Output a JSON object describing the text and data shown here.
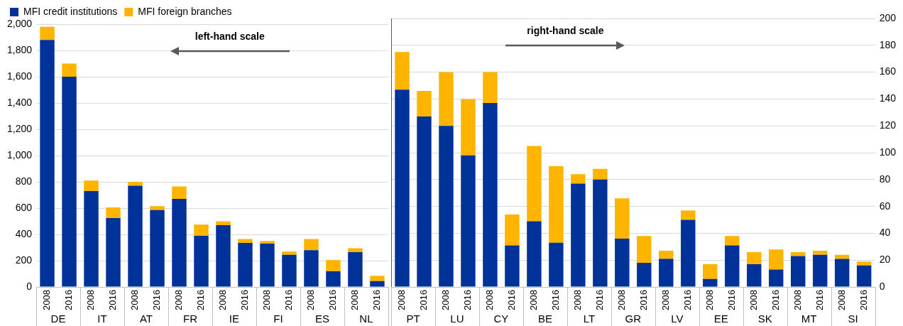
{
  "chart_data": [
    {
      "type": "bar",
      "stacked": true,
      "categories": [
        "2008",
        "2016",
        "2008",
        "2016",
        "2008",
        "2016",
        "2008",
        "2016",
        "2008",
        "2016",
        "2008",
        "2016",
        "2008",
        "2016",
        "2008",
        "2016"
      ],
      "series": [
        {
          "name": "MFI credit institutions",
          "color": "#003299",
          "values": [
            1880,
            1600,
            730,
            525,
            770,
            585,
            670,
            390,
            470,
            335,
            330,
            245,
            280,
            120,
            265,
            45
          ]
        },
        {
          "name": "MFI foreign branches",
          "color": "#ffb400",
          "values": [
            100,
            100,
            80,
            80,
            30,
            30,
            95,
            85,
            30,
            30,
            20,
            25,
            85,
            85,
            30,
            40
          ]
        }
      ],
      "ylim": [
        0,
        2000
      ],
      "yticks": [
        0,
        {
          "value": 200,
          "label": "200"
        },
        {
          "value": 400,
          "label": "400"
        },
        {
          "value": 600,
          "label": "600"
        },
        {
          "value": 800,
          "label": "800"
        },
        {
          "value": 1000,
          "label": "1,000"
        },
        {
          "value": 1200,
          "label": "1,200"
        },
        {
          "value": 1400,
          "label": "1,400"
        },
        {
          "value": 1600,
          "label": "1,600"
        },
        {
          "value": 1800,
          "label": "1,800"
        },
        {
          "value": 2000,
          "label": "2,000"
        }
      ],
      "grid": "y",
      "legend": "top left",
      "annotations": [
        "left-hand scale",
        "DE",
        "IT",
        "AT",
        "FR",
        "IE",
        "FI",
        "ES",
        "NL"
      ]
    },
    {
      "type": "bar",
      "stacked": true,
      "categories": [
        "2008",
        "2016",
        "2008",
        "2016",
        "2008",
        "2016",
        "2008",
        "2016",
        "2008",
        "2016",
        "2008",
        "2016",
        "2008",
        "2016",
        "2008",
        "2016",
        "2008",
        "2016",
        "2008",
        "2016",
        "2008",
        "2016"
      ],
      "series": [
        {
          "color": "#003299",
          "axis": "y2",
          "values": [
            147,
            127,
            120,
            98,
            137,
            31,
            49,
            33,
            77,
            80,
            36,
            18,
            21,
            50,
            6,
            31,
            17,
            13,
            23,
            24,
            21,
            16
          ]
        },
        {
          "color": "#ffb400",
          "axis": "y2",
          "values": [
            28,
            19,
            40,
            42,
            23,
            23,
            56,
            57,
            7,
            8,
            30,
            20,
            6,
            7,
            11,
            7,
            9,
            15,
            3,
            3,
            3,
            3
          ]
        }
      ],
      "y2lim": [
        0,
        200
      ],
      "y2ticks": [
        0,
        20,
        40,
        60,
        80,
        100,
        120,
        140,
        160,
        180,
        200
      ],
      "grid": "y",
      "annotations": [
        "right-hand scale",
        "PT",
        "LU",
        "CY",
        "BE",
        "LT",
        "GR",
        "LV",
        "EE",
        "SK",
        "MT",
        "SI"
      ]
    }
  ]
}
